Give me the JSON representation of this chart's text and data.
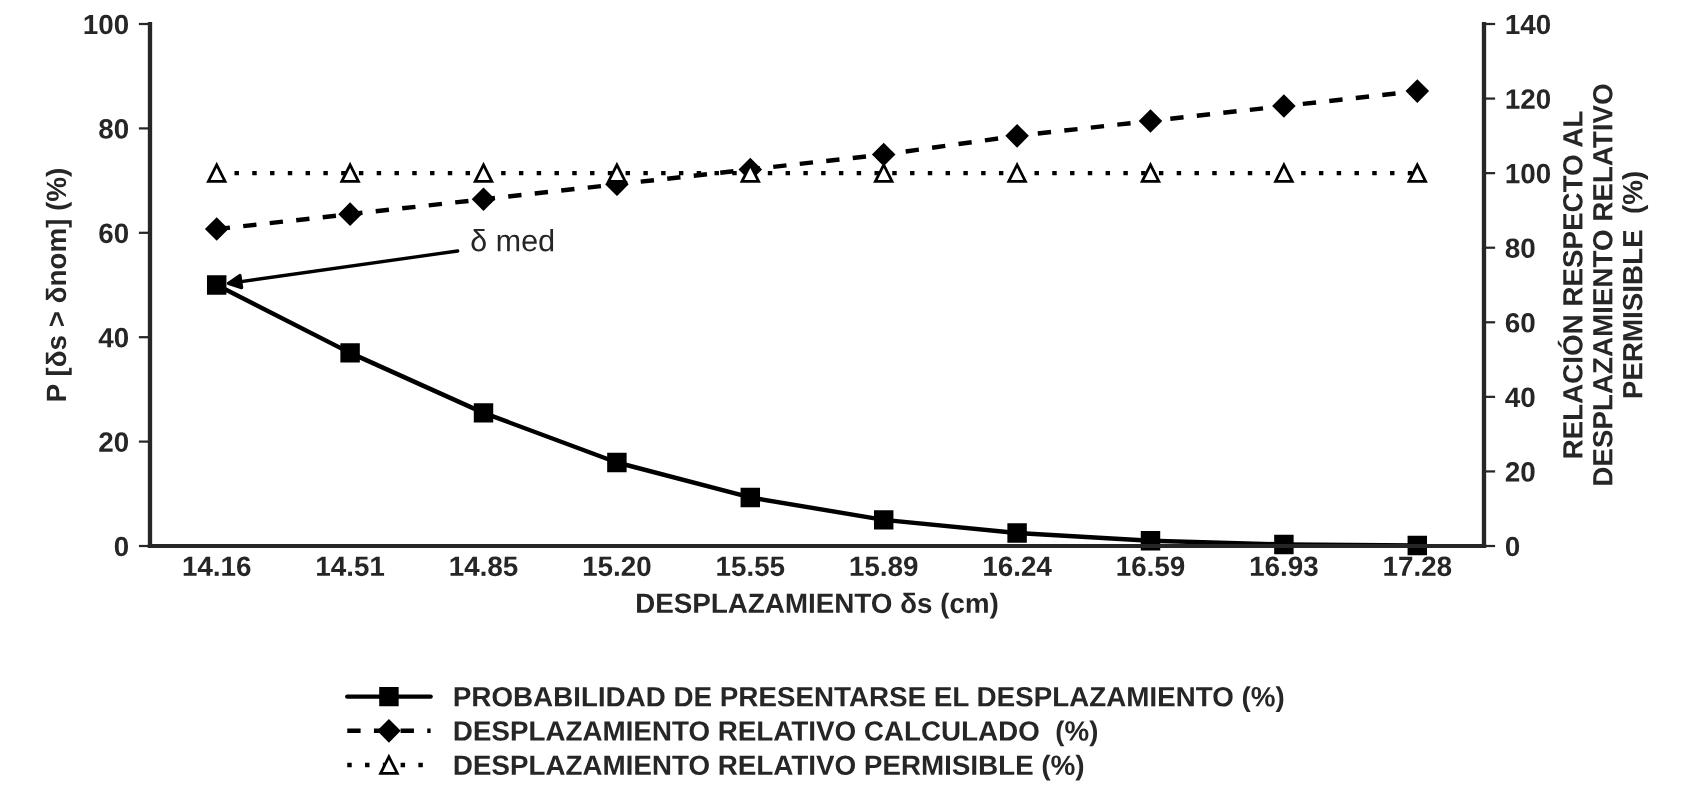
{
  "chart_data": {
    "type": "line",
    "categories": [
      "14.16",
      "14.51",
      "14.85",
      "15.20",
      "15.55",
      "15.89",
      "16.24",
      "16.59",
      "16.93",
      "17.28"
    ],
    "xlabel": "DESPLAZAMIENTO δs (cm)",
    "ylabel": "P [δs > δnom] (%)",
    "y2label": "RELACIÓN RESPECTO AL\nDESPLAZAMIENTO RELATIVO\nPERMISIBLE  (%)",
    "ylim": [
      0,
      100
    ],
    "yticks": [
      0,
      20,
      40,
      60,
      80,
      100
    ],
    "y2lim": [
      0,
      140
    ],
    "y2ticks": [
      0,
      20,
      40,
      60,
      80,
      100,
      120,
      140
    ],
    "grid": false,
    "legend": "bottom",
    "series": [
      {
        "name": "PROBABILIDAD DE PRESENTARSE EL DESPLAZAMIENTO (%)",
        "color": "#000000",
        "marker": "square",
        "line_style": "solid",
        "values": [
          50,
          37,
          25.5,
          16,
          9.3,
          5,
          2.5,
          1,
          0.3,
          0.1
        ]
      },
      {
        "name": "DESPLAZAMIENTO RELATIVO CALCULADO  (%)",
        "color": "#000000",
        "marker": "diamond",
        "line_style": "dashed",
        "axis": "y2",
        "values": [
          85,
          89,
          93,
          97,
          101,
          105,
          110,
          114,
          118,
          122
        ]
      },
      {
        "name": "DESPLAZAMIENTO RELATIVO PERMISIBLE (%)",
        "color": "#000000",
        "marker": "triangle",
        "line_style": "dotted",
        "axis": "y2",
        "values": [
          100,
          100,
          100,
          100,
          100,
          100,
          100,
          100,
          100,
          100
        ]
      }
    ],
    "annotations": [
      {
        "text": "δ med",
        "x": "14.16",
        "y": 50
      }
    ]
  }
}
